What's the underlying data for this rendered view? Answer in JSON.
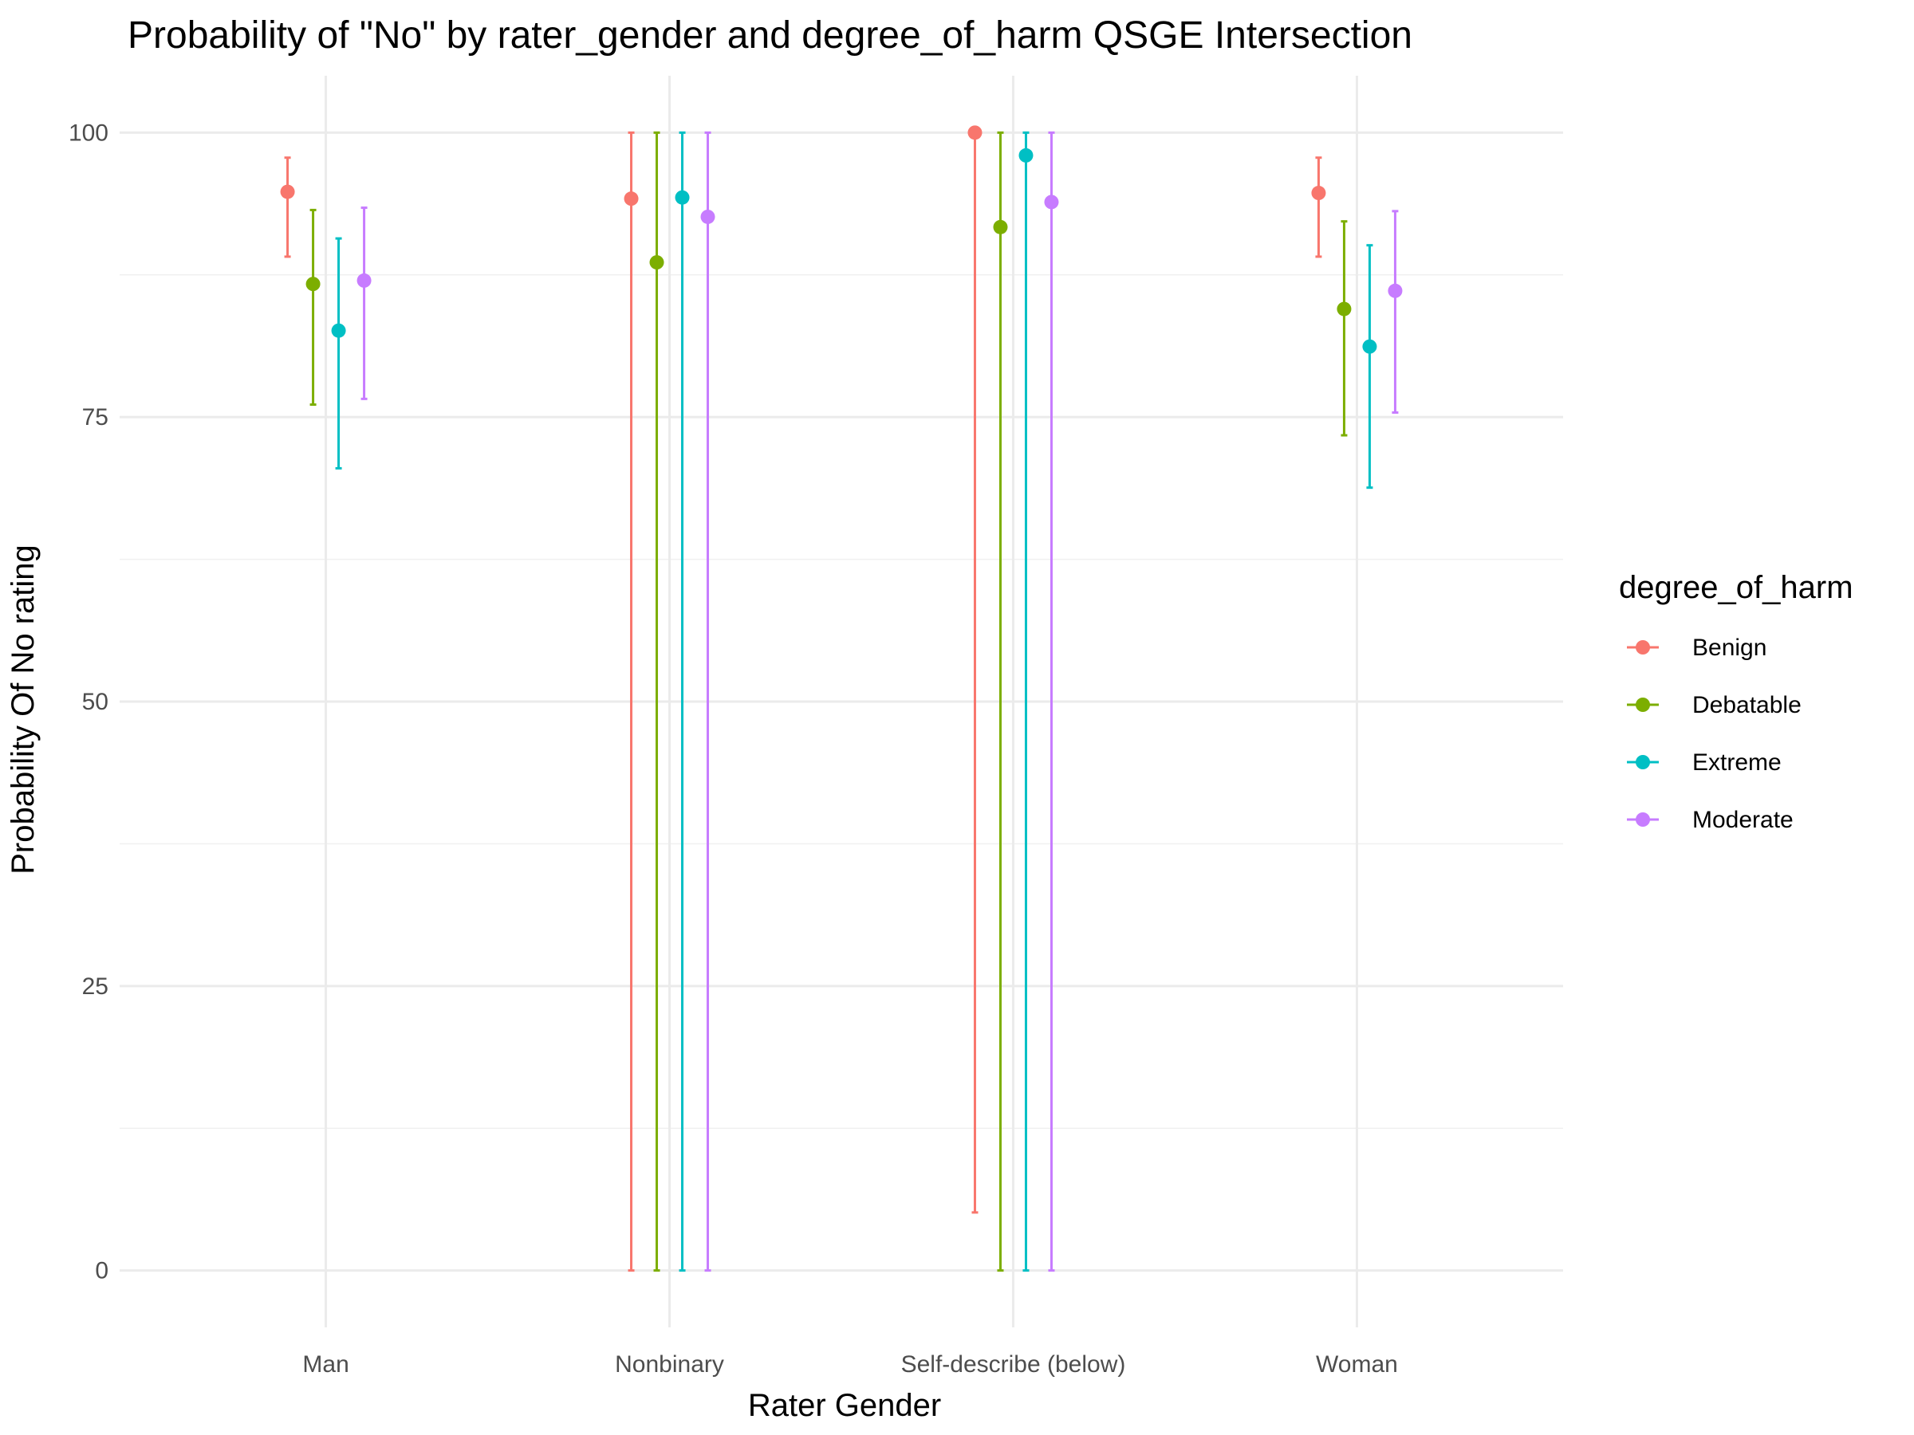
{
  "chart_data": {
    "type": "errorbar",
    "title": "Probability of \"No\" by rater_gender and  degree_of_harm  QSGE Intersection",
    "xlabel": "Rater Gender",
    "ylabel": "Probability Of No rating",
    "categories": [
      "Man",
      "Nonbinary",
      "Self-describe (below)",
      "Woman"
    ],
    "yticks": [
      "0",
      "25",
      "50",
      "75",
      "100"
    ],
    "ylim": [
      -5,
      105
    ],
    "grid": true,
    "legend": {
      "title": "degree_of_harm",
      "position": "right"
    },
    "series": [
      {
        "name": "Benign",
        "color": "#F8766D",
        "values": [
          94.8,
          94.2,
          100.0,
          94.7
        ],
        "lower": [
          89.1,
          0.0,
          5.1,
          89.1
        ],
        "upper": [
          97.8,
          100.0,
          100.0,
          97.8
        ]
      },
      {
        "name": "Debatable",
        "color": "#7CAE00",
        "values": [
          86.7,
          88.6,
          91.7,
          84.5
        ],
        "lower": [
          76.1,
          0.0,
          0.0,
          73.4
        ],
        "upper": [
          93.2,
          100.0,
          100.0,
          92.2
        ]
      },
      {
        "name": "Extreme",
        "color": "#00BFC4",
        "values": [
          82.6,
          94.3,
          98.0,
          81.2
        ],
        "lower": [
          70.5,
          0.0,
          0.0,
          68.8
        ],
        "upper": [
          90.7,
          100.0,
          100.0,
          90.1
        ]
      },
      {
        "name": "Moderate",
        "color": "#C77CFF",
        "values": [
          87.0,
          92.6,
          93.9,
          86.1
        ],
        "lower": [
          76.6,
          0.0,
          0.0,
          75.4
        ],
        "upper": [
          93.4,
          100.0,
          100.0,
          93.1
        ]
      }
    ]
  }
}
